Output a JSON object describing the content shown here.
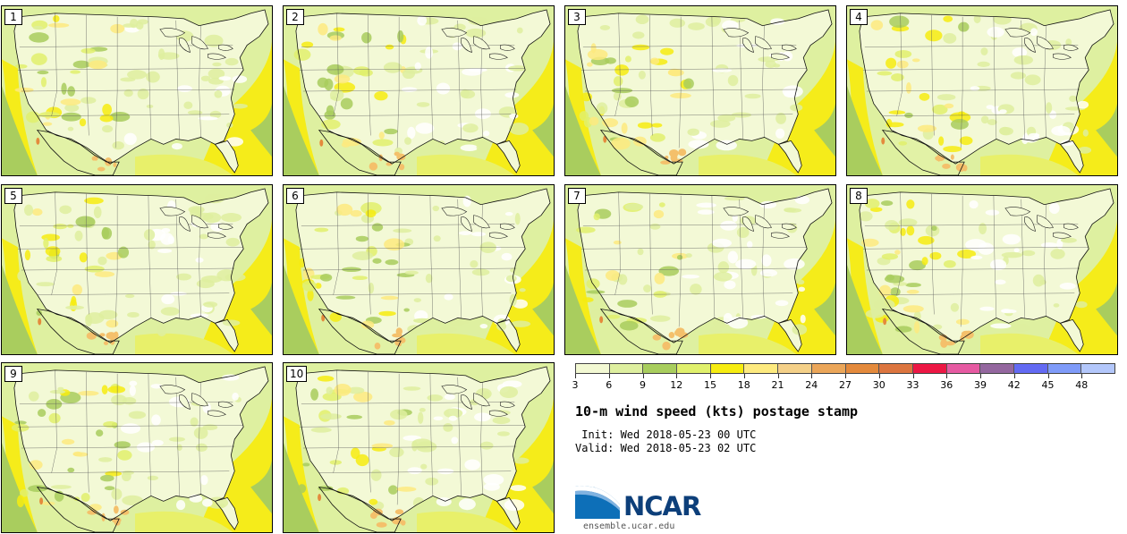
{
  "panels": [
    {
      "label": "1"
    },
    {
      "label": "2"
    },
    {
      "label": "3"
    },
    {
      "label": "4"
    },
    {
      "label": "5"
    },
    {
      "label": "6"
    },
    {
      "label": "7"
    },
    {
      "label": "8"
    },
    {
      "label": "9"
    },
    {
      "label": "10"
    }
  ],
  "colorbar": {
    "colors": [
      "#f3f9d3",
      "#deef9f",
      "#a8cd5d",
      "#e0f06c",
      "#f6ec10",
      "#fdea7f",
      "#f4d088",
      "#eba659",
      "#e48a3c",
      "#dc753f",
      "#ec1744",
      "#e65aa2",
      "#94679f",
      "#636af3",
      "#7f9bf9",
      "#b3c7fb"
    ],
    "tick_labels": [
      "3",
      "6",
      "9",
      "12",
      "15",
      "18",
      "21",
      "24",
      "27",
      "30",
      "33",
      "36",
      "39",
      "42",
      "45",
      "48"
    ]
  },
  "title": "10-m wind speed (kts) postage stamp",
  "init": " Init: Wed 2018-05-23 00 UTC",
  "valid": "Valid: Wed 2018-05-23 02 UTC",
  "logo": {
    "text": "NCAR",
    "colors": {
      "blue": "#0d3f7a",
      "light": "#6aa6d8"
    }
  },
  "site": "ensemble.ucar.edu"
}
